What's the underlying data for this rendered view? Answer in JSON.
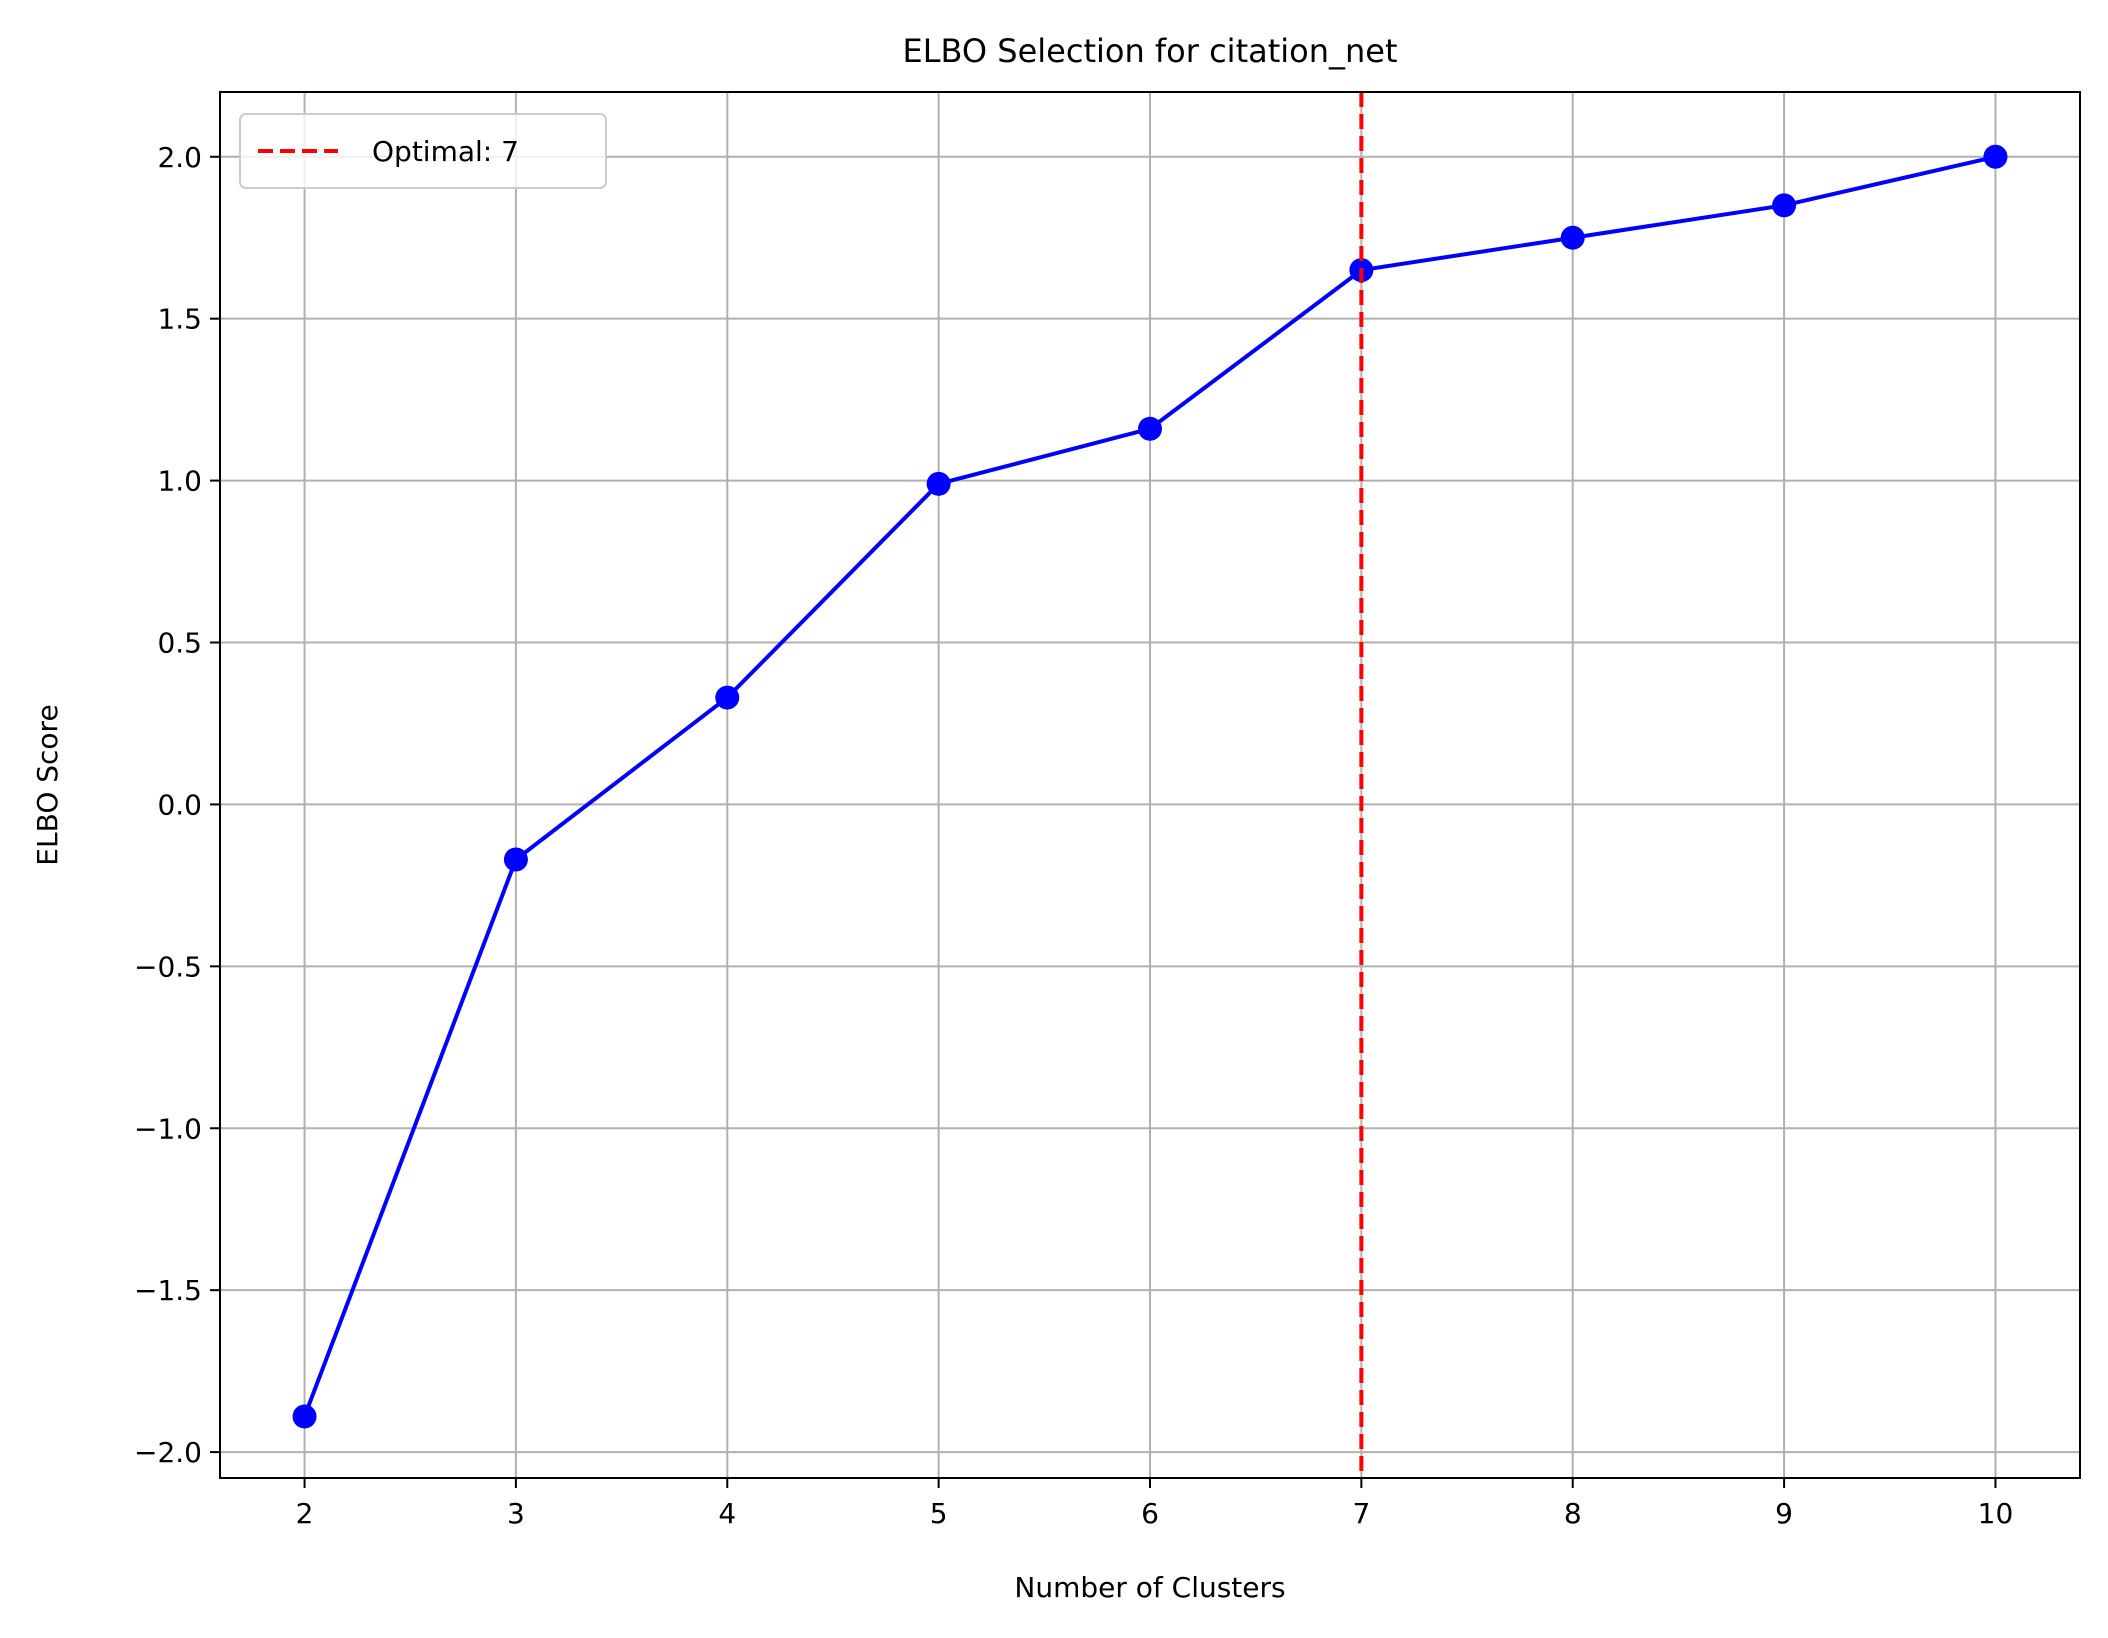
{
  "chart_data": {
    "type": "line",
    "title": "ELBO Selection for citation_net",
    "xlabel": "Number of Clusters",
    "ylabel": "ELBO Score",
    "x": [
      2,
      3,
      4,
      5,
      6,
      7,
      8,
      9,
      10
    ],
    "xticks": [
      "2",
      "3",
      "4",
      "5",
      "6",
      "7",
      "8",
      "9",
      "10"
    ],
    "xlim": [
      1.6,
      10.4
    ],
    "ylim": [
      -2.08,
      2.2
    ],
    "yticks": [
      {
        "value": -2.0,
        "label": "−2.0"
      },
      {
        "value": -1.5,
        "label": "−1.5"
      },
      {
        "value": -1.0,
        "label": "−1.0"
      },
      {
        "value": -0.5,
        "label": "−0.5"
      },
      {
        "value": 0.0,
        "label": "0.0"
      },
      {
        "value": 0.5,
        "label": "0.5"
      },
      {
        "value": 1.0,
        "label": "1.0"
      },
      {
        "value": 1.5,
        "label": "1.5"
      },
      {
        "value": 2.0,
        "label": "2.0"
      }
    ],
    "series": [
      {
        "values": [
          -1.89,
          -0.17,
          0.33,
          0.99,
          1.16,
          1.65,
          1.75,
          1.85,
          2.0
        ],
        "color": "#0000ff",
        "marker": "circle"
      }
    ],
    "vline": {
      "x": 7,
      "label": "Optimal: 7",
      "color": "#ff0000",
      "style": "dashed"
    },
    "legend": {
      "position": "top-left",
      "entries": [
        "Optimal: 7"
      ]
    },
    "grid": true
  }
}
